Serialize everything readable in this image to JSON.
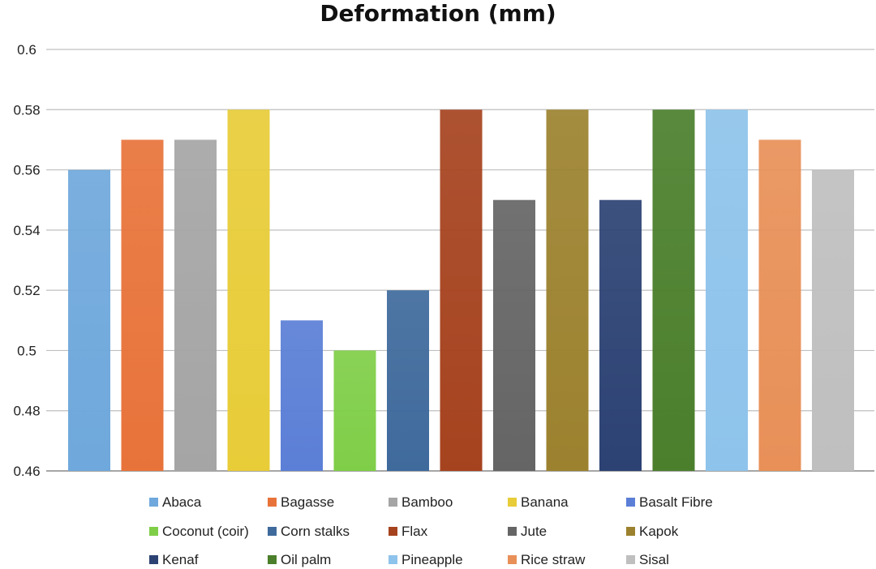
{
  "chart_data": {
    "type": "bar",
    "title": "Deformation (mm)",
    "xlabel": "",
    "ylabel": "",
    "ylim": [
      0.46,
      0.6
    ],
    "yticks": [
      "0.6",
      "0.58",
      "0.56",
      "0.54",
      "0.52",
      "0.5",
      "0.48",
      "0.46"
    ],
    "ytick_values": [
      0.6,
      0.58,
      0.56,
      0.54,
      0.52,
      0.5,
      0.48,
      0.46
    ],
    "grid": true,
    "legend_position": "bottom",
    "categories": [
      "Abaca",
      "Bagasse",
      "Bamboo",
      "Banana",
      "Basalt Fibre",
      "Coconut (coir)",
      "Corn stalks",
      "Flax",
      "Jute",
      "Kapok",
      "Kenaf",
      "Oil palm",
      "Pineapple",
      "Rice straw",
      "Sisal"
    ],
    "values": [
      0.56,
      0.57,
      0.57,
      0.58,
      0.51,
      0.5,
      0.52,
      0.58,
      0.55,
      0.58,
      0.55,
      0.58,
      0.58,
      0.57,
      0.56
    ],
    "colors": [
      "#6fa8dc",
      "#e8733a",
      "#a5a5a5",
      "#e8cc38",
      "#5b7fd6",
      "#7fce48",
      "#3f6a9c",
      "#a6431f",
      "#656565",
      "#9c822f",
      "#2c4273",
      "#4b7f2c",
      "#8ec3eb",
      "#e89058",
      "#bfbfbf"
    ]
  }
}
